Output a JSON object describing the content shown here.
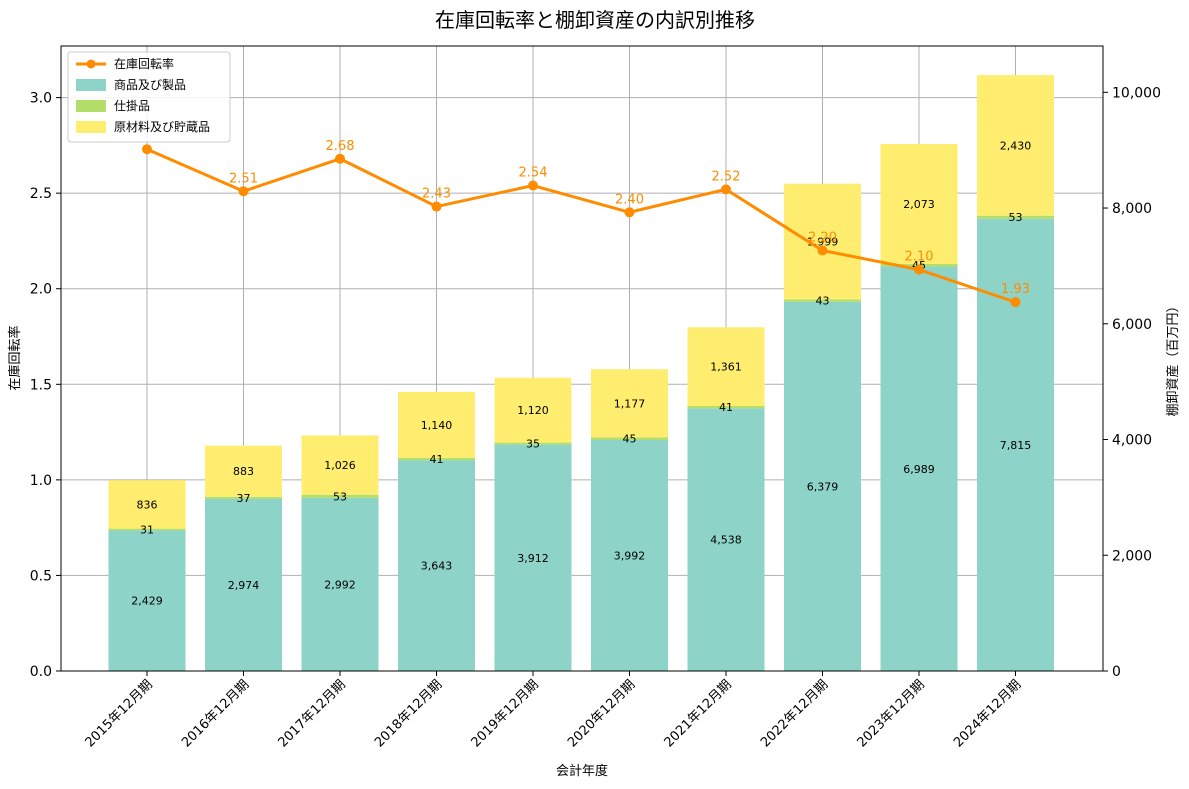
{
  "chart_data": {
    "type": "bar",
    "stacked": true,
    "title": "在庫回転率と棚卸資産の内訳別推移",
    "xlabel": "会計年度",
    "ylabel_left": "在庫回転率",
    "ylabel_right": "棚卸資産（百万円）",
    "ylim_left": [
      0,
      3.27
    ],
    "ylim_right": [
      0,
      10800
    ],
    "yticks_left": [
      "0.0",
      "0.5",
      "1.0",
      "1.5",
      "2.0",
      "2.5",
      "3.0"
    ],
    "yticks_right": [
      "0",
      "2,000",
      "4,000",
      "6,000",
      "8,000",
      "10,000"
    ],
    "grid": true,
    "legend_position": "top-left",
    "categories": [
      "2015年12月期",
      "2016年12月期",
      "2017年12月期",
      "2018年12月期",
      "2019年12月期",
      "2020年12月期",
      "2021年12月期",
      "2022年12月期",
      "2023年12月期",
      "2024年12月期"
    ],
    "series": [
      {
        "name": "商品及び製品",
        "axis": "right",
        "color": "#8dd3c7",
        "values": [
          2429,
          2974,
          2992,
          3643,
          3912,
          3992,
          4538,
          6379,
          6989,
          7815
        ],
        "labels": [
          "2,429",
          "2,974",
          "2,992",
          "3,643",
          "3,912",
          "3,992",
          "4,538",
          "6,379",
          "6,989",
          "7,815"
        ]
      },
      {
        "name": "仕掛品",
        "axis": "right",
        "color": "#b3de69",
        "values": [
          31,
          37,
          53,
          41,
          35,
          45,
          41,
          43,
          45,
          53
        ],
        "labels": [
          "31",
          "37",
          "53",
          "41",
          "35",
          "45",
          "41",
          "43",
          "45",
          "53"
        ]
      },
      {
        "name": "原材料及び貯蔵品",
        "axis": "right",
        "color": "#ffed6f",
        "values": [
          836,
          883,
          1026,
          1140,
          1120,
          1177,
          1361,
          1999,
          2073,
          2430
        ],
        "labels": [
          "836",
          "883",
          "1,026",
          "1,140",
          "1,120",
          "1,177",
          "1,361",
          "1,999",
          "2,073",
          "2,430"
        ]
      },
      {
        "name": "在庫回転率",
        "axis": "left",
        "type": "line",
        "color": "#ff8c00",
        "values": [
          2.73,
          2.51,
          2.68,
          2.43,
          2.54,
          2.4,
          2.52,
          2.2,
          2.1,
          1.93
        ],
        "labels": [
          "",
          "2.51",
          "2.68",
          "2.43",
          "2.54",
          "2.40",
          "2.52",
          "2.20",
          "2.10",
          "1.93"
        ]
      }
    ],
    "legend_order": [
      "在庫回転率",
      "商品及び製品",
      "仕掛品",
      "原材料及び貯蔵品"
    ]
  }
}
